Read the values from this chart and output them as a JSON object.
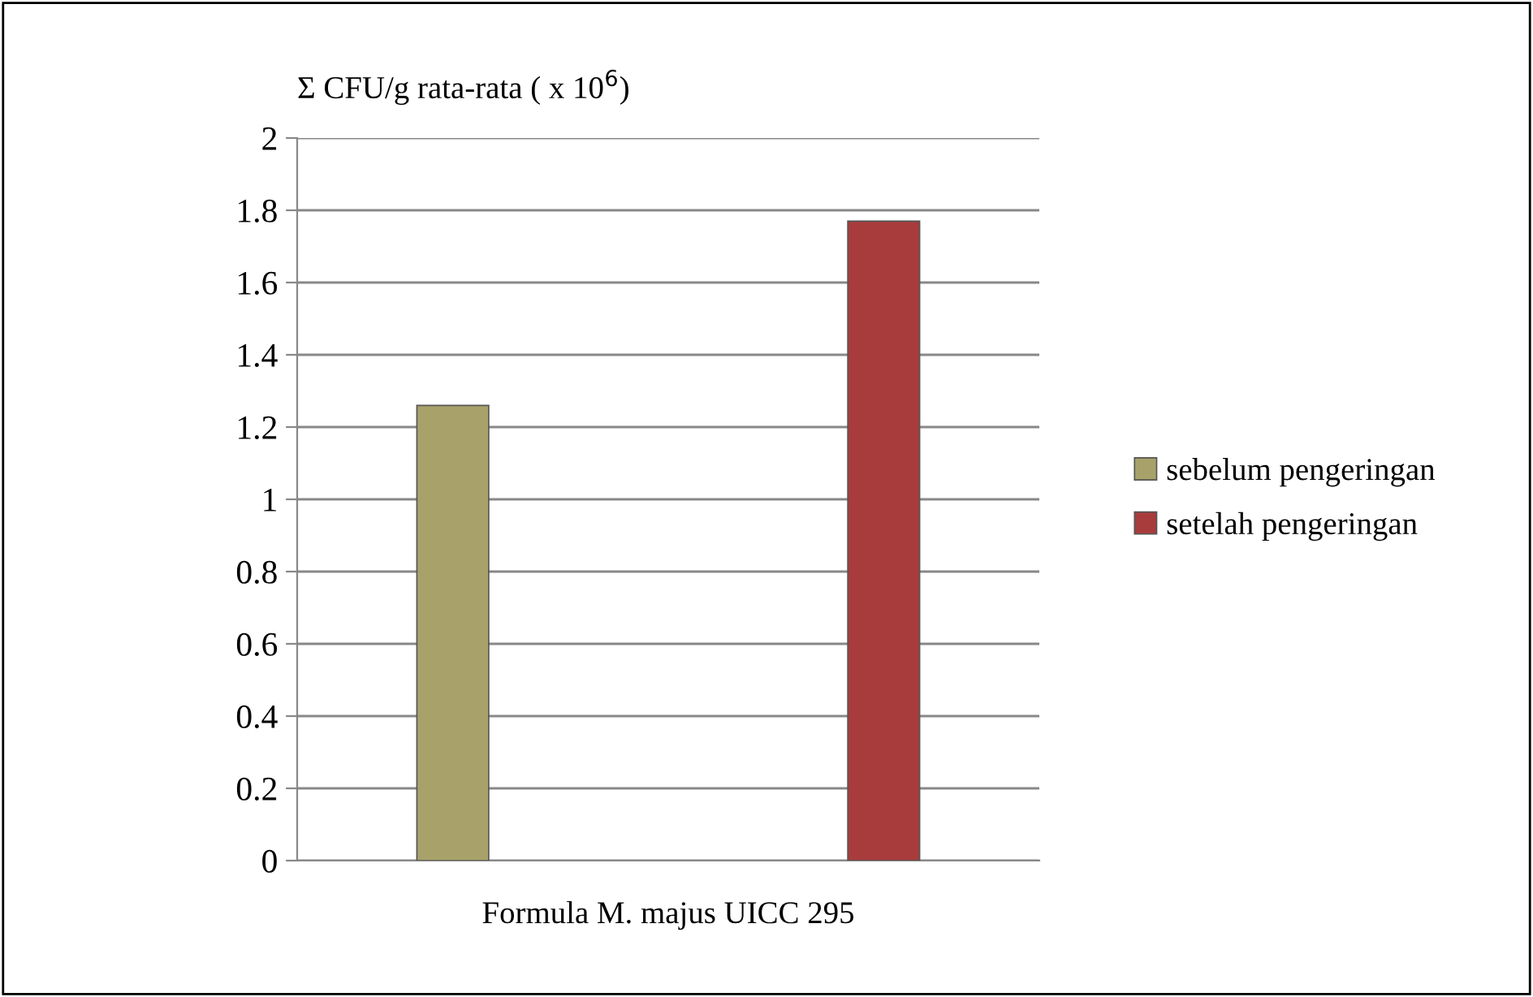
{
  "chart_data": {
    "type": "bar",
    "ylabel": "Σ CFU/g rata-rata ( x 10$^{6}$)",
    "categories": [
      "Formula M. majus UICC 295"
    ],
    "series": [
      {
        "name": "sebelum pengeringan",
        "color": "#a8a26a",
        "values": [
          1.26
        ]
      },
      {
        "name": "setelah pengeringan",
        "color": "#a83c3c",
        "values": [
          1.77
        ]
      }
    ],
    "ylim": [
      0,
      2
    ],
    "yticks": [
      0,
      0.2,
      0.4,
      0.6,
      0.8,
      1,
      1.2,
      1.4,
      1.6,
      1.8,
      2
    ],
    "grid": "y",
    "legend": "right"
  }
}
